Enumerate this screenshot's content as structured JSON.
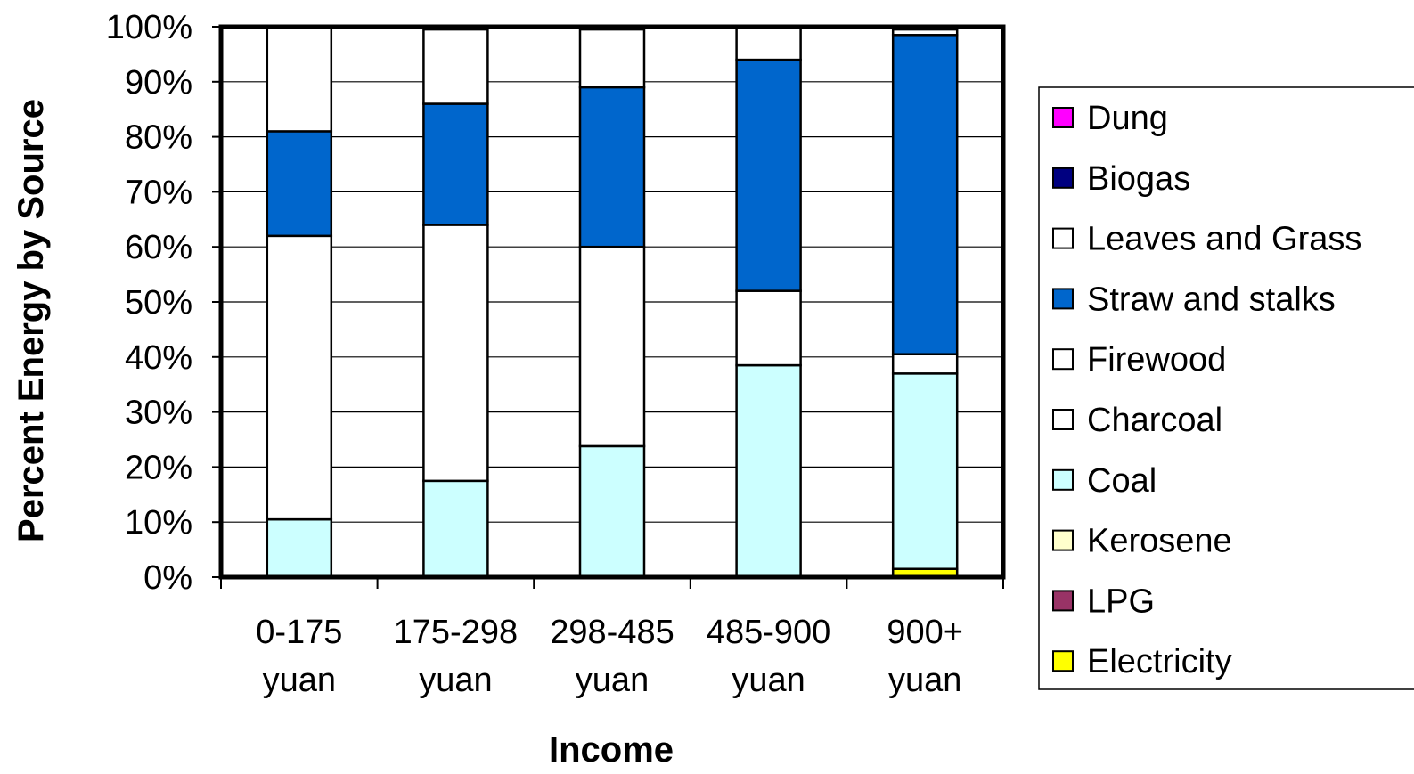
{
  "chart_data": {
    "type": "bar",
    "stacked": true,
    "percent": true,
    "title": "",
    "xlabel": "Income",
    "ylabel": "Percent Energy by Source",
    "ylim": [
      0,
      100
    ],
    "yticks": [
      "0%",
      "10%",
      "20%",
      "30%",
      "40%",
      "50%",
      "60%",
      "70%",
      "80%",
      "90%",
      "100%"
    ],
    "grid": true,
    "legend_position": "right",
    "categories": [
      {
        "line1": "0-175",
        "line2": "yuan"
      },
      {
        "line1": "175-298",
        "line2": "yuan"
      },
      {
        "line1": "298-485",
        "line2": "yuan"
      },
      {
        "line1": "485-900",
        "line2": "yuan"
      },
      {
        "line1": "900+",
        "line2": "yuan"
      }
    ],
    "series": [
      {
        "name": "Electricity",
        "color": "#ffff00",
        "values": [
          0,
          0,
          0,
          0,
          1.5
        ]
      },
      {
        "name": "LPG",
        "color": "#993366",
        "values": [
          0,
          0,
          0,
          0,
          0
        ]
      },
      {
        "name": "Kerosene",
        "color": "#ffffcc",
        "values": [
          0,
          0,
          0,
          0,
          0
        ]
      },
      {
        "name": "Coal",
        "color": "#ccffff",
        "values": [
          10.5,
          17.5,
          23.8,
          38.5,
          35.5
        ]
      },
      {
        "name": "Charcoal",
        "color": "#ffffff",
        "values": [
          0,
          0,
          0,
          0,
          0
        ]
      },
      {
        "name": "Firewood",
        "color": "#ffffff",
        "values": [
          51.5,
          46.5,
          36.2,
          13.5,
          3.5
        ]
      },
      {
        "name": "Straw and stalks",
        "color": "#0066cc",
        "values": [
          19,
          22,
          29,
          42,
          58
        ]
      },
      {
        "name": "Leaves and Grass",
        "color": "#ffffff",
        "values": [
          19,
          13.5,
          10.5,
          6,
          1
        ]
      },
      {
        "name": "Biogas",
        "color": "#000080",
        "values": [
          0,
          0,
          0,
          0,
          0
        ]
      },
      {
        "name": "Dung",
        "color": "#ff00ff",
        "values": [
          0,
          0,
          0,
          0,
          0
        ]
      }
    ],
    "legend_order": [
      "Dung",
      "Biogas",
      "Leaves and Grass",
      "Straw and stalks",
      "Firewood",
      "Charcoal",
      "Coal",
      "Kerosene",
      "LPG",
      "Electricity"
    ]
  }
}
